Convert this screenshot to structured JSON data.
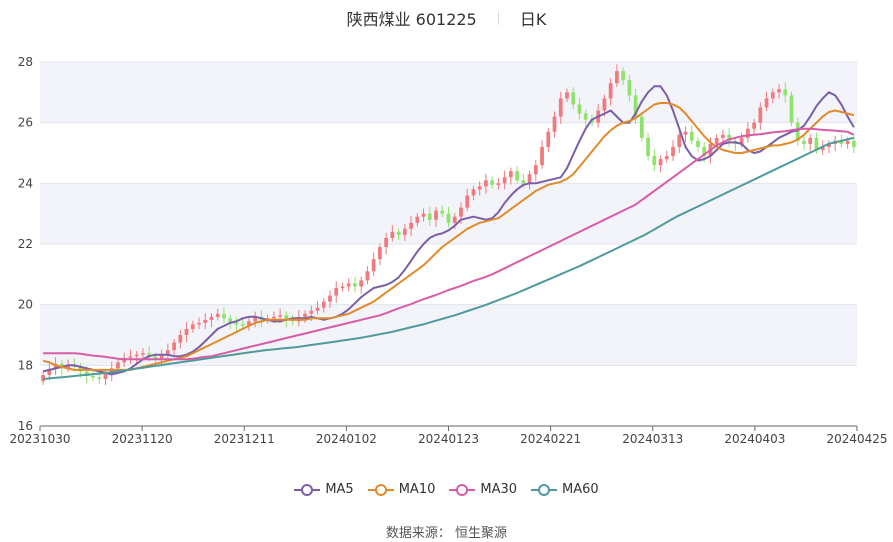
{
  "header": {
    "stock_name": "陕西煤业 601225",
    "period": "日K"
  },
  "source": "数据来源： 恒生聚源",
  "colors": {
    "up": "#f07a7e",
    "down": "#8fe26b",
    "ma5": "#7b5ea7",
    "ma10": "#e08a2c",
    "ma30": "#d95ca6",
    "ma60": "#4f9a9b"
  },
  "chart_data": {
    "type": "candlestick",
    "title": "陕西煤业 601225",
    "period": "日K",
    "ylim": [
      16,
      28
    ],
    "yticks": [
      16,
      18,
      20,
      22,
      24,
      26,
      28
    ],
    "xticks": [
      "20231030",
      "20231120",
      "20231211",
      "20240102",
      "20240123",
      "20240221",
      "20240313",
      "20240403",
      "20240425"
    ],
    "legend_position": "bottom",
    "series": [
      {
        "name": "MA5",
        "color": "#7b5ea7",
        "values": [
          17.8,
          17.85,
          17.9,
          17.95,
          18.0,
          18.0,
          17.95,
          17.9,
          17.85,
          17.8,
          17.75,
          17.7,
          17.75,
          17.8,
          17.9,
          18.05,
          18.2,
          18.3,
          18.35,
          18.35,
          18.35,
          18.3,
          18.3,
          18.35,
          18.45,
          18.6,
          18.8,
          19.0,
          19.2,
          19.3,
          19.4,
          19.45,
          19.55,
          19.6,
          19.6,
          19.55,
          19.5,
          19.45,
          19.45,
          19.5,
          19.55,
          19.55,
          19.55,
          19.6,
          19.55,
          19.5,
          19.55,
          19.6,
          19.7,
          19.85,
          20.05,
          20.25,
          20.4,
          20.55,
          20.6,
          20.65,
          20.75,
          20.9,
          21.15,
          21.45,
          21.75,
          22.0,
          22.2,
          22.3,
          22.35,
          22.45,
          22.6,
          22.8,
          22.85,
          22.9,
          22.85,
          22.8,
          22.85,
          23.05,
          23.35,
          23.6,
          23.8,
          23.95,
          24.0,
          24.0,
          24.05,
          24.1,
          24.15,
          24.2,
          24.5,
          24.95,
          25.4,
          25.8,
          26.1,
          26.2,
          26.3,
          26.4,
          26.2,
          26.0,
          26.0,
          26.3,
          26.7,
          27.0,
          27.2,
          27.2,
          26.9,
          26.4,
          25.8,
          25.2,
          24.9,
          24.75,
          24.8,
          24.9,
          25.1,
          25.3,
          25.35,
          25.35,
          25.3,
          25.1,
          25.0,
          25.05,
          25.2,
          25.35,
          25.5,
          25.6,
          25.7,
          25.75,
          25.9,
          26.2,
          26.55,
          26.8,
          27.0,
          26.9,
          26.6,
          26.2,
          25.85
        ]
      },
      {
        "name": "MA10",
        "color": "#e08a2c",
        "values": [
          18.15,
          18.1,
          18.0,
          17.95,
          17.9,
          17.85,
          17.85,
          17.85,
          17.85,
          17.85,
          17.85,
          17.85,
          17.85,
          17.85,
          17.85,
          17.9,
          17.95,
          18.0,
          18.05,
          18.1,
          18.15,
          18.2,
          18.25,
          18.3,
          18.4,
          18.5,
          18.6,
          18.7,
          18.8,
          18.9,
          19.0,
          19.1,
          19.2,
          19.3,
          19.4,
          19.45,
          19.5,
          19.5,
          19.5,
          19.5,
          19.5,
          19.5,
          19.5,
          19.55,
          19.55,
          19.55,
          19.55,
          19.6,
          19.65,
          19.7,
          19.8,
          19.9,
          20.0,
          20.1,
          20.25,
          20.4,
          20.55,
          20.7,
          20.85,
          21.0,
          21.15,
          21.3,
          21.5,
          21.7,
          21.9,
          22.05,
          22.2,
          22.35,
          22.5,
          22.6,
          22.7,
          22.75,
          22.8,
          22.85,
          23.0,
          23.15,
          23.3,
          23.45,
          23.6,
          23.75,
          23.85,
          23.95,
          24.0,
          24.05,
          24.15,
          24.3,
          24.55,
          24.8,
          25.05,
          25.3,
          25.55,
          25.75,
          25.9,
          26.0,
          26.05,
          26.15,
          26.3,
          26.45,
          26.6,
          26.65,
          26.65,
          26.6,
          26.5,
          26.3,
          26.05,
          25.8,
          25.55,
          25.35,
          25.2,
          25.1,
          25.05,
          25.0,
          25.0,
          25.05,
          25.1,
          25.15,
          25.2,
          25.25,
          25.25,
          25.3,
          25.35,
          25.45,
          25.6,
          25.8,
          26.0,
          26.2,
          26.35,
          26.4,
          26.35,
          26.3,
          26.25
        ]
      },
      {
        "name": "MA30",
        "color": "#d95ca6",
        "values": [
          18.4,
          18.4,
          18.4,
          18.4,
          18.4,
          18.4,
          18.38,
          18.35,
          18.32,
          18.3,
          18.28,
          18.25,
          18.22,
          18.2,
          18.2,
          18.2,
          18.2,
          18.2,
          18.2,
          18.2,
          18.2,
          18.2,
          18.2,
          18.2,
          18.22,
          18.25,
          18.28,
          18.3,
          18.35,
          18.4,
          18.45,
          18.5,
          18.55,
          18.6,
          18.65,
          18.7,
          18.75,
          18.8,
          18.85,
          18.9,
          18.95,
          19.0,
          19.05,
          19.1,
          19.15,
          19.2,
          19.25,
          19.3,
          19.35,
          19.4,
          19.45,
          19.5,
          19.55,
          19.6,
          19.65,
          19.72,
          19.8,
          19.88,
          19.95,
          20.02,
          20.1,
          20.18,
          20.25,
          20.32,
          20.4,
          20.48,
          20.55,
          20.62,
          20.7,
          20.78,
          20.85,
          20.92,
          21.0,
          21.1,
          21.2,
          21.3,
          21.4,
          21.5,
          21.6,
          21.7,
          21.8,
          21.9,
          22.0,
          22.1,
          22.2,
          22.3,
          22.4,
          22.5,
          22.6,
          22.7,
          22.8,
          22.9,
          23.0,
          23.1,
          23.2,
          23.3,
          23.45,
          23.6,
          23.75,
          23.9,
          24.05,
          24.2,
          24.35,
          24.5,
          24.65,
          24.8,
          24.95,
          25.1,
          25.25,
          25.35,
          25.45,
          25.5,
          25.55,
          25.58,
          25.6,
          25.62,
          25.65,
          25.68,
          25.7,
          25.72,
          25.75,
          25.78,
          25.8,
          25.8,
          25.78,
          25.76,
          25.75,
          25.74,
          25.72,
          25.7,
          25.6
        ]
      },
      {
        "name": "MA60",
        "color": "#4f9a9b",
        "values": [
          17.55,
          17.57,
          17.59,
          17.61,
          17.63,
          17.65,
          17.67,
          17.69,
          17.71,
          17.73,
          17.75,
          17.78,
          17.81,
          17.84,
          17.87,
          17.9,
          17.93,
          17.96,
          17.99,
          18.02,
          18.05,
          18.08,
          18.11,
          18.14,
          18.17,
          18.2,
          18.23,
          18.26,
          18.29,
          18.32,
          18.35,
          18.38,
          18.41,
          18.44,
          18.47,
          18.5,
          18.52,
          18.54,
          18.56,
          18.58,
          18.6,
          18.63,
          18.66,
          18.69,
          18.72,
          18.75,
          18.78,
          18.81,
          18.84,
          18.87,
          18.9,
          18.94,
          18.98,
          19.02,
          19.06,
          19.1,
          19.15,
          19.2,
          19.25,
          19.3,
          19.35,
          19.41,
          19.47,
          19.53,
          19.59,
          19.65,
          19.72,
          19.79,
          19.86,
          19.93,
          20.0,
          20.08,
          20.16,
          20.24,
          20.32,
          20.4,
          20.49,
          20.58,
          20.67,
          20.76,
          20.85,
          20.94,
          21.03,
          21.12,
          21.21,
          21.3,
          21.4,
          21.5,
          21.6,
          21.7,
          21.8,
          21.9,
          22.0,
          22.1,
          22.2,
          22.3,
          22.42,
          22.54,
          22.66,
          22.78,
          22.9,
          23.0,
          23.1,
          23.2,
          23.3,
          23.4,
          23.5,
          23.6,
          23.7,
          23.8,
          23.9,
          24.0,
          24.1,
          24.2,
          24.3,
          24.4,
          24.5,
          24.6,
          24.7,
          24.8,
          24.9,
          25.0,
          25.1,
          25.2,
          25.3,
          25.35,
          25.4,
          25.45,
          25.5
        ]
      }
    ],
    "candles": {
      "close": [
        17.68,
        17.88,
        18.05,
        17.9,
        18.02,
        17.95,
        17.8,
        17.65,
        17.6,
        17.55,
        17.72,
        17.9,
        18.1,
        18.25,
        18.3,
        18.35,
        18.4,
        18.3,
        18.2,
        18.35,
        18.5,
        18.75,
        19.0,
        19.2,
        19.35,
        19.4,
        19.5,
        19.6,
        19.7,
        19.55,
        19.4,
        19.35,
        19.3,
        19.45,
        19.6,
        19.5,
        19.55,
        19.6,
        19.65,
        19.5,
        19.45,
        19.6,
        19.7,
        19.8,
        19.9,
        20.1,
        20.3,
        20.55,
        20.6,
        20.7,
        20.6,
        20.8,
        21.1,
        21.5,
        21.9,
        22.2,
        22.4,
        22.3,
        22.5,
        22.7,
        22.9,
        23.0,
        22.8,
        23.1,
        23.0,
        22.7,
        22.9,
        23.2,
        23.6,
        23.8,
        23.9,
        24.1,
        23.95,
        24.0,
        24.2,
        24.4,
        24.1,
        24.0,
        24.3,
        24.6,
        25.2,
        25.7,
        26.2,
        26.8,
        27.0,
        26.6,
        26.3,
        26.1,
        26.0,
        26.4,
        26.8,
        27.3,
        27.7,
        27.4,
        26.9,
        26.2,
        25.5,
        24.9,
        24.6,
        24.8,
        24.9,
        25.2,
        25.6,
        25.7,
        25.4,
        25.2,
        24.9,
        25.3,
        25.5,
        25.6,
        25.4,
        25.3,
        25.5,
        25.8,
        26.0,
        26.5,
        26.8,
        27.0,
        27.1,
        26.9,
        26.0,
        25.4,
        25.3,
        25.5,
        25.1,
        25.2,
        25.3,
        25.4,
        25.3,
        25.4,
        25.2
      ],
      "open": [
        17.48,
        17.68,
        17.88,
        18.05,
        17.9,
        18.02,
        17.95,
        17.8,
        17.65,
        17.6,
        17.55,
        17.72,
        17.9,
        18.1,
        18.25,
        18.3,
        18.35,
        18.4,
        18.3,
        18.2,
        18.35,
        18.5,
        18.75,
        19.0,
        19.2,
        19.35,
        19.4,
        19.5,
        19.6,
        19.7,
        19.55,
        19.4,
        19.35,
        19.3,
        19.45,
        19.6,
        19.5,
        19.55,
        19.6,
        19.65,
        19.5,
        19.45,
        19.6,
        19.7,
        19.8,
        19.9,
        20.1,
        20.3,
        20.55,
        20.6,
        20.7,
        20.6,
        20.8,
        21.1,
        21.5,
        21.9,
        22.2,
        22.4,
        22.3,
        22.5,
        22.7,
        22.9,
        23.0,
        22.8,
        23.1,
        23.0,
        22.7,
        22.9,
        23.2,
        23.6,
        23.8,
        23.9,
        24.1,
        23.95,
        24.0,
        24.2,
        24.4,
        24.1,
        24.0,
        24.3,
        24.6,
        25.2,
        25.7,
        26.2,
        26.8,
        27.0,
        26.6,
        26.3,
        26.1,
        26.0,
        26.4,
        26.8,
        27.3,
        27.7,
        27.4,
        26.9,
        26.2,
        25.5,
        24.9,
        24.6,
        24.8,
        24.9,
        25.2,
        25.6,
        25.7,
        25.4,
        25.2,
        24.9,
        25.3,
        25.5,
        25.6,
        25.4,
        25.3,
        25.5,
        25.8,
        26.0,
        26.5,
        26.8,
        27.0,
        27.1,
        26.9,
        26.0,
        25.4,
        25.3,
        25.5,
        25.1,
        25.2,
        25.3,
        25.4,
        25.3,
        25.4
      ]
    }
  }
}
